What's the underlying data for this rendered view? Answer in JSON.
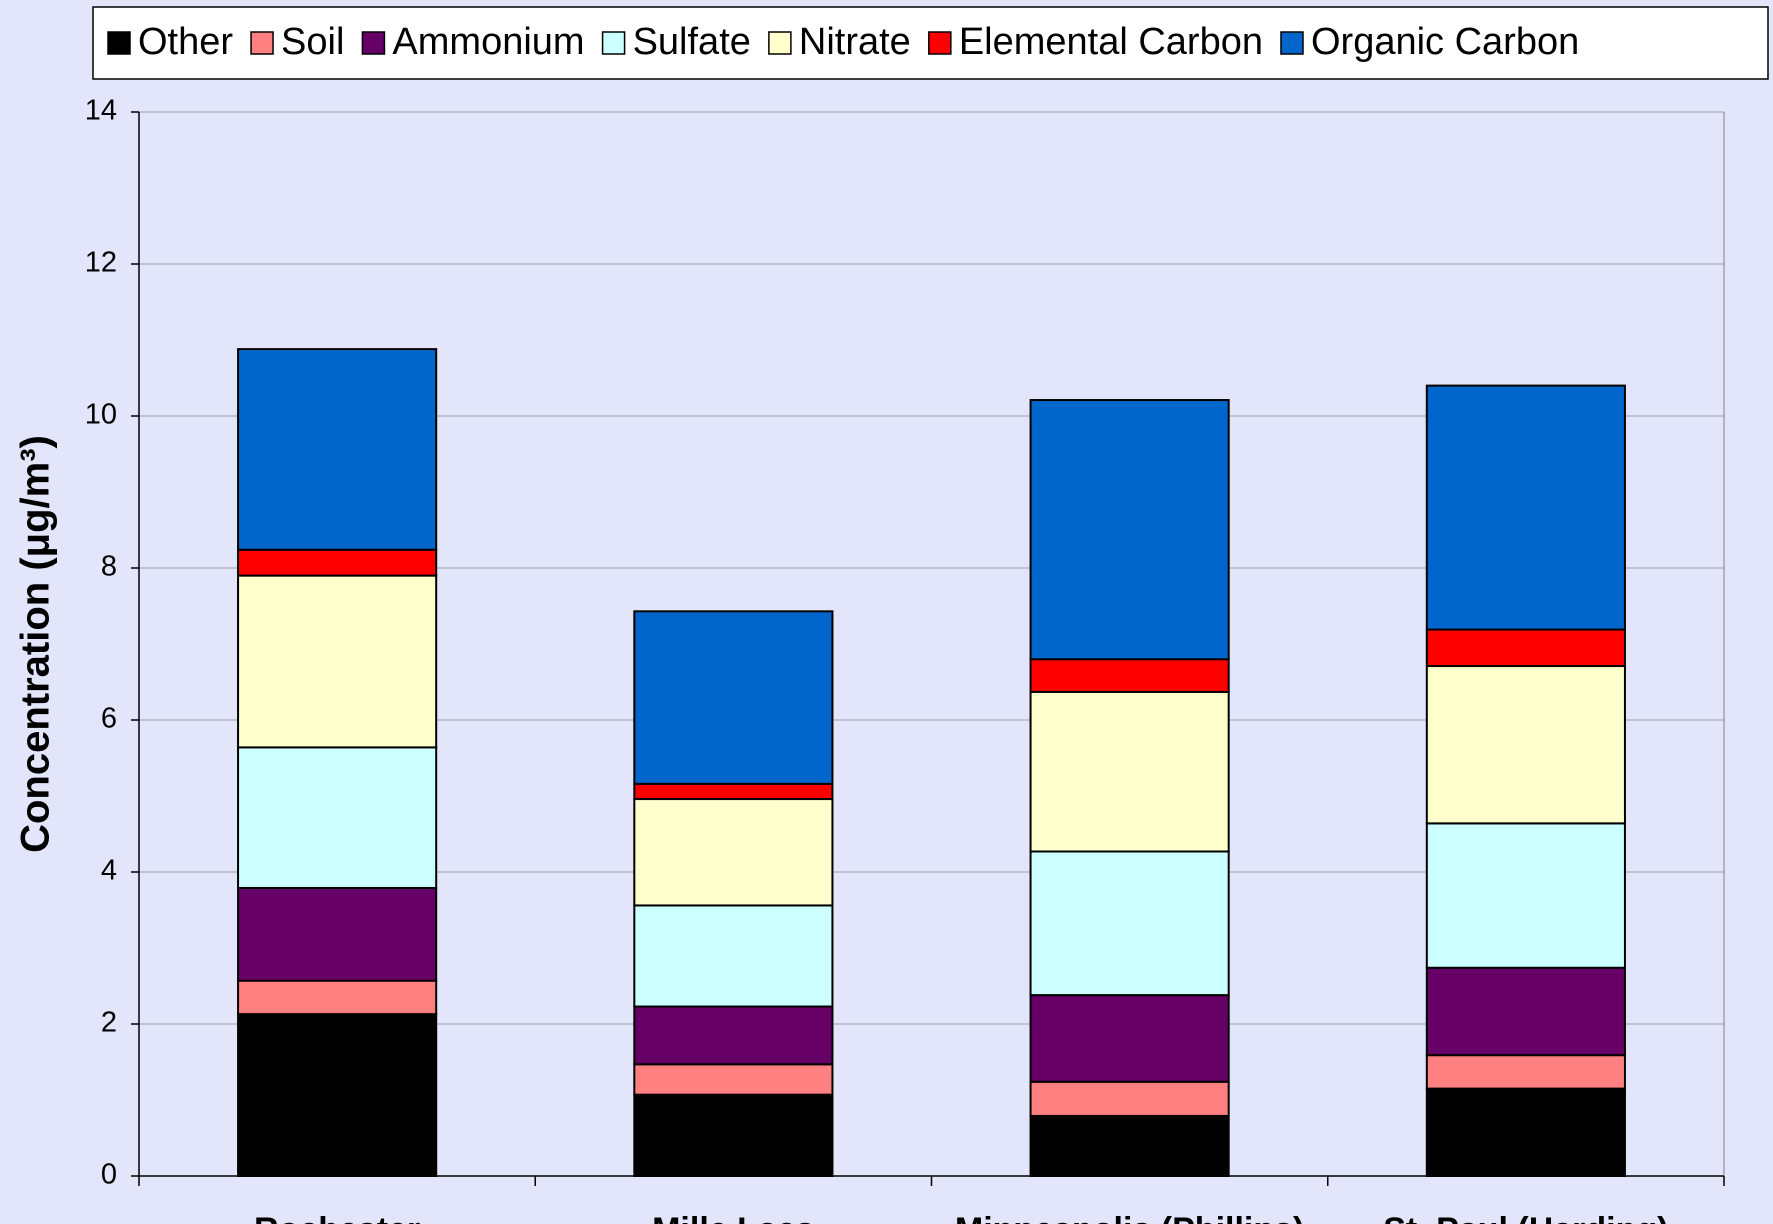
{
  "chart_data": {
    "type": "stacked_bar",
    "y_label": "Concentration (μg/m³)",
    "categories": [
      "Rochester",
      "Mille Lacs",
      "Minneapolis (Phillips)",
      "St. Paul (Harding)"
    ],
    "series": [
      {
        "name": "Other",
        "color": "#000000",
        "values": [
          2.13,
          1.07,
          0.79,
          1.15
        ]
      },
      {
        "name": "Soil",
        "color": "#ff8080",
        "values": [
          0.44,
          0.4,
          0.45,
          0.44
        ]
      },
      {
        "name": "Ammonium",
        "color": "#660066",
        "values": [
          1.22,
          0.76,
          1.14,
          1.15
        ]
      },
      {
        "name": "Sulfate",
        "color": "#ccffff",
        "values": [
          1.85,
          1.33,
          1.89,
          1.9
        ]
      },
      {
        "name": "Nitrate",
        "color": "#ffffcc",
        "values": [
          2.26,
          1.4,
          2.1,
          2.07
        ]
      },
      {
        "name": "Elemental Carbon",
        "color": "#ff0000",
        "values": [
          0.34,
          0.2,
          0.43,
          0.48
        ]
      },
      {
        "name": "Organic Carbon",
        "color": "#0066cc",
        "values": [
          2.64,
          2.27,
          3.41,
          3.21
        ]
      }
    ],
    "ylim": [
      0,
      14
    ],
    "yticks": [
      0,
      2,
      4,
      6,
      8,
      10,
      12,
      14
    ],
    "grid": true,
    "legend": "top"
  }
}
